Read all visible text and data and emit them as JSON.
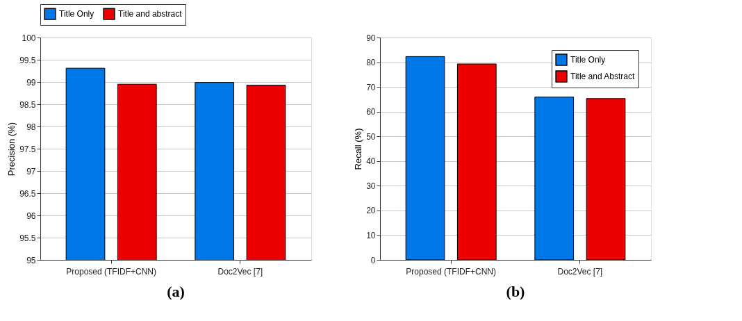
{
  "chart_data": [
    {
      "type": "bar",
      "title": "(a)",
      "ylabel": "Precision (%)",
      "categories": [
        "Proposed (TFIDF+CNN)",
        "Doc2Vec [7]"
      ],
      "series": [
        {
          "name": "Title Only",
          "color": "#0077e6",
          "values": [
            99.31,
            98.99
          ]
        },
        {
          "name": "Title and abstract",
          "color": "#ee0000",
          "values": [
            98.95,
            98.93
          ]
        }
      ],
      "ylim": [
        95,
        100
      ],
      "yticks": [
        95,
        95.5,
        96,
        96.5,
        97,
        97.5,
        98,
        98.5,
        99,
        99.5,
        100
      ],
      "grid": "y",
      "legend": "top"
    },
    {
      "type": "bar",
      "title": "(b)",
      "ylabel": "Recall (%)",
      "categories": [
        "Proposed (TFIDF+CNN)",
        "Doc2Vec [7]"
      ],
      "series": [
        {
          "name": "Title Only",
          "color": "#0077e6",
          "values": [
            82.3,
            65.9
          ]
        },
        {
          "name": "Title and Abstract",
          "color": "#ee0000",
          "values": [
            79.3,
            65.3
          ]
        }
      ],
      "ylim": [
        0,
        90
      ],
      "yticks": [
        0,
        10,
        20,
        30,
        40,
        50,
        60,
        70,
        80,
        90
      ],
      "grid": "y",
      "legend": "top right"
    }
  ]
}
